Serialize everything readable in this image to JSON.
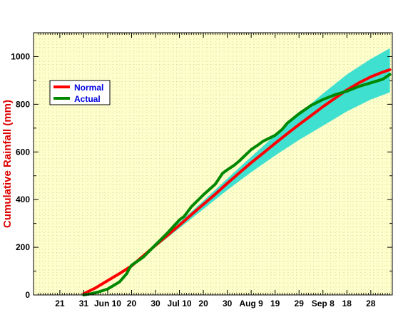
{
  "chart_data": {
    "type": "line",
    "title": "",
    "xlabel": "",
    "ylabel": "Cumulative Rainfall (mm)",
    "ylabel_color": "#dd0000",
    "x_unit": "day",
    "xlim": [
      -11,
      139
    ],
    "ylim": [
      0,
      1100
    ],
    "y_ticks": [
      0,
      200,
      400,
      600,
      800,
      1000
    ],
    "x_ticks": [
      {
        "x": 0,
        "label": "21"
      },
      {
        "x": 10,
        "label": "31"
      },
      {
        "x": 20,
        "label": "Jun 10"
      },
      {
        "x": 30,
        "label": "20"
      },
      {
        "x": 40,
        "label": "30"
      },
      {
        "x": 50,
        "label": "Jul 10"
      },
      {
        "x": 60,
        "label": "20"
      },
      {
        "x": 70,
        "label": "30"
      },
      {
        "x": 80,
        "label": "Aug 9"
      },
      {
        "x": 90,
        "label": "19"
      },
      {
        "x": 100,
        "label": "29"
      },
      {
        "x": 110,
        "label": "Sep 8"
      },
      {
        "x": 120,
        "label": "18"
      },
      {
        "x": 130,
        "label": "28"
      }
    ],
    "plot_background": "#ffffcc",
    "grid": "dotted",
    "legend_position": "upper-left",
    "band": {
      "color": "#40e0d0",
      "x": [
        30,
        40,
        50,
        60,
        70,
        80,
        90,
        100,
        110,
        120,
        130,
        138
      ],
      "lower": [
        118,
        200,
        280,
        360,
        440,
        515,
        585,
        650,
        710,
        770,
        820,
        850
      ],
      "upper": [
        128,
        215,
        305,
        395,
        488,
        580,
        670,
        760,
        845,
        925,
        990,
        1035
      ]
    },
    "series": [
      {
        "name": "Normal",
        "color": "#ff0000",
        "x": [
          10,
          15,
          20,
          25,
          30,
          35,
          40,
          45,
          50,
          55,
          60,
          65,
          70,
          75,
          80,
          85,
          90,
          95,
          100,
          105,
          110,
          115,
          120,
          125,
          130,
          135,
          138
        ],
        "y": [
          5,
          30,
          60,
          90,
          122,
          165,
          208,
          250,
          293,
          337,
          380,
          423,
          468,
          512,
          555,
          595,
          636,
          676,
          715,
          752,
          790,
          825,
          860,
          890,
          915,
          935,
          945
        ]
      },
      {
        "name": "Actual",
        "color": "#008800",
        "x": [
          10,
          13,
          16,
          20,
          25,
          28,
          29,
          30,
          33,
          35,
          40,
          45,
          50,
          52,
          55,
          60,
          65,
          68,
          70,
          73,
          75,
          80,
          83,
          85,
          90,
          93,
          95,
          100,
          105,
          110,
          115,
          120,
          125,
          130,
          135,
          138
        ],
        "y": [
          0,
          5,
          12,
          25,
          55,
          90,
          110,
          125,
          145,
          160,
          210,
          260,
          315,
          330,
          370,
          420,
          465,
          510,
          525,
          545,
          562,
          610,
          630,
          645,
          670,
          695,
          720,
          760,
          795,
          820,
          840,
          855,
          875,
          890,
          905,
          925
        ]
      }
    ]
  }
}
